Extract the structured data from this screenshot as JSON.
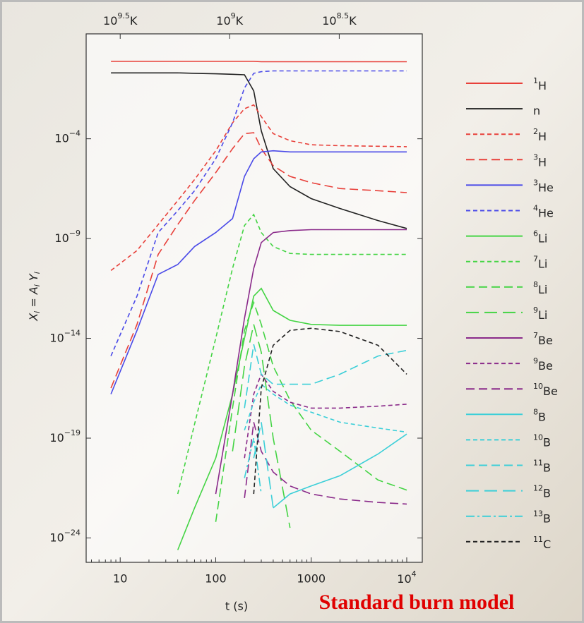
{
  "chart_data": {
    "type": "line",
    "x_label": "t (s)",
    "y_label": "X_i = A_i Y_i",
    "annotation": "Standard burn model",
    "log_x": true,
    "log_y": true,
    "xlim": [
      4.4,
      14550
    ],
    "ylim": [
      6e-26,
      18
    ],
    "xticks": [
      10,
      100,
      1000,
      {
        "value": 10000,
        "label": "10^4"
      }
    ],
    "yticks": [
      {
        "value": 0.0001,
        "label": "10^−4"
      },
      {
        "value": 1e-09,
        "label": "10^−9"
      },
      {
        "value": 1e-14,
        "label": "10^−14"
      },
      {
        "value": 1e-19,
        "label": "10^−19"
      },
      {
        "value": 1e-24,
        "label": "10^−24"
      }
    ],
    "x2lim": [
      4520000000.0,
      132000000.0
    ],
    "x2ticks": [
      {
        "value": 3160000000.0,
        "label": "10^9.5K"
      },
      {
        "value": 1000000000.0,
        "label": "10^9K"
      },
      {
        "value": 316000000.0,
        "label": "10^8.5K"
      }
    ],
    "x": [
      8,
      15,
      25,
      40,
      60,
      100,
      150,
      200,
      250,
      300,
      400,
      600,
      1000,
      2000,
      5000,
      10000
    ],
    "series": [
      {
        "name": "^1H",
        "color": "#e8403a",
        "style": "solid",
        "values": [
          0.75,
          0.75,
          0.75,
          0.75,
          0.75,
          0.75,
          0.75,
          0.75,
          0.75,
          0.72,
          0.72,
          0.72,
          0.72,
          0.72,
          0.72,
          0.72
        ]
      },
      {
        "name": "n",
        "color": "#222222",
        "style": "solid",
        "values": [
          0.2,
          0.2,
          0.2,
          0.2,
          0.19,
          0.18,
          0.17,
          0.16,
          0.025,
          0.00025,
          3.2e-06,
          4e-07,
          1e-07,
          3.2e-08,
          8e-09,
          3.2e-09
        ]
      },
      {
        "name": "^2H",
        "color": "#e8403a",
        "style": "short",
        "values": [
          2.5e-11,
          2.5e-10,
          5e-09,
          8e-08,
          9e-07,
          2.5e-05,
          0.00063,
          0.0032,
          0.005,
          0.0013,
          0.00018,
          8e-05,
          5e-05,
          4.5e-05,
          4.2e-05,
          4e-05
        ]
      },
      {
        "name": "^3H",
        "color": "#e8403a",
        "style": "long",
        "values": [
          3.2e-17,
          5e-14,
          1.6e-10,
          5e-09,
          8e-08,
          2e-06,
          3.2e-05,
          0.00018,
          0.0002,
          3.2e-05,
          4.5e-06,
          1.3e-06,
          6.3e-07,
          3.2e-07,
          2.5e-07,
          2e-07
        ]
      },
      {
        "name": "^3He",
        "color": "#4a4ae8",
        "style": "solid",
        "values": [
          1.6e-17,
          2.5e-14,
          1.6e-11,
          5e-11,
          4e-10,
          2e-09,
          1e-08,
          1.3e-06,
          1e-05,
          2.2e-05,
          2.5e-05,
          2.2e-05,
          2.2e-05,
          2.2e-05,
          2.2e-05,
          2.2e-05
        ]
      },
      {
        "name": "^4He",
        "color": "#4a4ae8",
        "style": "short",
        "values": [
          1.3e-15,
          1.3e-12,
          2e-09,
          2.5e-08,
          2.5e-07,
          1e-05,
          0.00063,
          0.035,
          0.19,
          0.23,
          0.25,
          0.25,
          0.25,
          0.25,
          0.25,
          0.25
        ]
      },
      {
        "name": "^6Li",
        "color": "#44d444",
        "style": "solid",
        "values": [
          null,
          null,
          null,
          2.5e-25,
          3.2e-23,
          1e-20,
          1.6e-17,
          1e-14,
          1.3e-12,
          3.2e-12,
          2.5e-13,
          8e-14,
          5e-14,
          4.5e-14,
          4.5e-14,
          4.5e-14
        ]
      },
      {
        "name": "^7Li",
        "color": "#44d444",
        "style": "short",
        "values": [
          null,
          null,
          null,
          1.6e-22,
          5e-19,
          1e-14,
          3.2e-11,
          4.5e-09,
          1.6e-08,
          2e-09,
          4e-10,
          1.8e-10,
          1.6e-10,
          1.6e-10,
          1.6e-10,
          1.6e-10
        ]
      },
      {
        "name": "^8Li",
        "color": "#44d444",
        "style": "long",
        "values": [
          null,
          null,
          null,
          null,
          null,
          6.3e-24,
          3.2e-18,
          2.5e-14,
          6.3e-13,
          5e-14,
          4e-16,
          8e-18,
          2.5e-19,
          2.2e-20,
          8e-22,
          2.5e-22
        ]
      },
      {
        "name": "^9Li",
        "color": "#44d444",
        "style": "longer",
        "values": [
          null,
          null,
          null,
          null,
          null,
          null,
          2.2e-20,
          4e-16,
          5e-14,
          2e-15,
          1e-19,
          3.2e-24,
          null,
          null,
          null,
          null
        ]
      },
      {
        "name": "^7Be",
        "color": "#8a2a8a",
        "style": "solid",
        "values": [
          null,
          null,
          null,
          null,
          null,
          1.6e-22,
          1.6e-17,
          1e-13,
          3.2e-11,
          6.3e-10,
          2e-09,
          2.5e-09,
          2.8e-09,
          2.8e-09,
          2.8e-09,
          2.8e-09
        ]
      },
      {
        "name": "^9Be",
        "color": "#8a2a8a",
        "style": "short",
        "values": [
          null,
          null,
          null,
          null,
          null,
          null,
          null,
          1e-20,
          1.6e-17,
          1.6e-16,
          2.2e-17,
          6.3e-18,
          3.2e-18,
          3.2e-18,
          4e-18,
          5e-18
        ]
      },
      {
        "name": "^10Be",
        "color": "#8a2a8a",
        "style": "long",
        "values": [
          null,
          null,
          null,
          null,
          null,
          null,
          null,
          1e-22,
          6.3e-19,
          2.2e-20,
          2e-21,
          4e-22,
          1.6e-22,
          9e-23,
          6e-23,
          5e-23
        ]
      },
      {
        "name": "^8B",
        "color": "#3ccfd8",
        "style": "solid",
        "values": [
          null,
          null,
          null,
          null,
          null,
          null,
          null,
          null,
          null,
          null,
          3.2e-23,
          1.6e-22,
          4e-22,
          1.3e-21,
          1.6e-20,
          1.6e-19
        ]
      },
      {
        "name": "^10B",
        "color": "#3ccfd8",
        "style": "short",
        "values": [
          null,
          null,
          null,
          null,
          null,
          null,
          null,
          2.5e-19,
          6.3e-18,
          5e-17,
          1.6e-17,
          4.5e-18,
          2e-18,
          6.3e-19,
          3.2e-19,
          2e-19
        ]
      },
      {
        "name": "^11B",
        "color": "#3ccfd8",
        "style": "long",
        "values": [
          null,
          null,
          null,
          null,
          null,
          null,
          null,
          3.2e-18,
          5e-15,
          1.6e-16,
          5e-17,
          5e-17,
          5e-17,
          1.6e-16,
          1.3e-15,
          2.5e-15
        ]
      },
      {
        "name": "^12B",
        "color": "#3ccfd8",
        "style": "longer",
        "values": [
          null,
          null,
          null,
          null,
          null,
          null,
          null,
          null,
          1e-20,
          6.3e-19,
          3.2e-23,
          null,
          null,
          null,
          null,
          null
        ]
      },
      {
        "name": "^13B",
        "color": "#3ccfd8",
        "style": "dashdot",
        "values": [
          null,
          null,
          null,
          null,
          null,
          null,
          null,
          1e-21,
          1e-19,
          1.6e-22,
          null,
          null,
          null,
          null,
          null,
          null
        ]
      },
      {
        "name": "^11C",
        "color": "#222222",
        "style": "short",
        "values": [
          null,
          null,
          null,
          null,
          null,
          null,
          null,
          null,
          1.6e-22,
          3.2e-17,
          4.5e-15,
          2.5e-14,
          3.2e-14,
          2.2e-14,
          4.5e-15,
          1.6e-16
        ]
      }
    ]
  }
}
